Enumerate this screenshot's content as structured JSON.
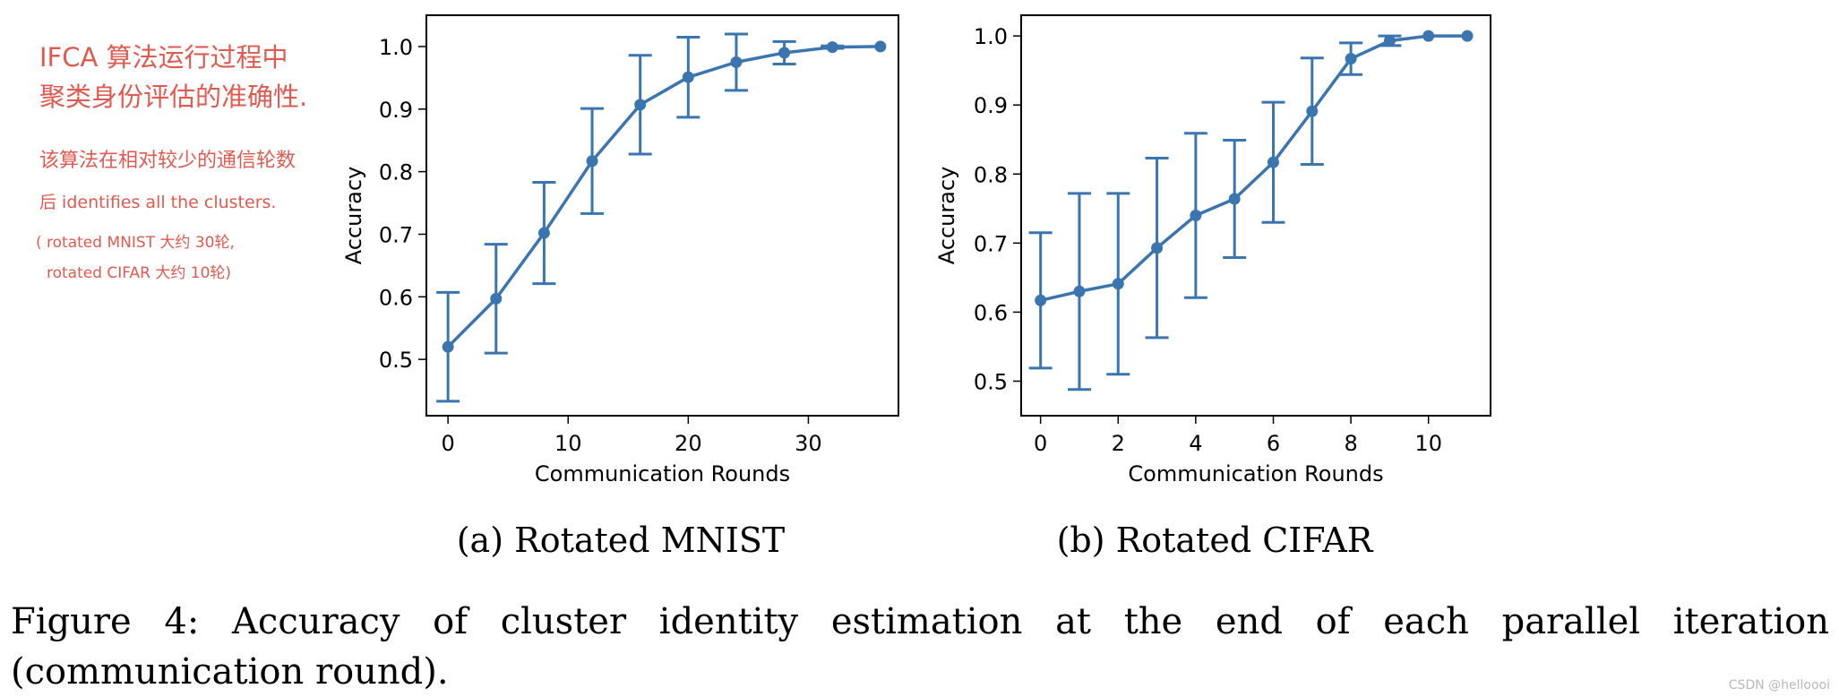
{
  "annotation": {
    "lines": [
      "IFCA 算法运行过程中",
      "聚类身份评估的准确性.",
      "该算法在相对较少的通信轮数",
      "后 identifies all the clusters.",
      "( rotated MNIST 大约 30轮,",
      "rotated CIFAR 大约 10轮)"
    ]
  },
  "chart_data": [
    {
      "type": "line",
      "subcaption": "(a) Rotated MNIST",
      "xlabel": "Communication Rounds",
      "ylabel": "Accuracy",
      "xlim": [
        -1.8,
        37.5
      ],
      "ylim": [
        0.41,
        1.05
      ],
      "xticks": [
        0,
        10,
        20,
        30
      ],
      "yticks": [
        0.5,
        0.6,
        0.7,
        0.8,
        0.9,
        1.0
      ],
      "series": [
        {
          "name": "accuracy",
          "color": "#3a75b0",
          "x": [
            0,
            4,
            8,
            12,
            16,
            20,
            24,
            28,
            32,
            36
          ],
          "y": [
            0.52,
            0.597,
            0.702,
            0.817,
            0.907,
            0.951,
            0.975,
            0.99,
            0.999,
            1.0
          ],
          "yerr": [
            0.087,
            0.087,
            0.081,
            0.084,
            0.079,
            0.064,
            0.045,
            0.018,
            0.002,
            0.0
          ]
        }
      ]
    },
    {
      "type": "line",
      "subcaption": "(b) Rotated CIFAR",
      "xlabel": "Communication Rounds",
      "ylabel": "Accuracy",
      "xlim": [
        -0.5,
        11.6
      ],
      "ylim": [
        0.45,
        1.03
      ],
      "xticks": [
        0,
        2,
        4,
        6,
        8,
        10
      ],
      "yticks": [
        0.5,
        0.6,
        0.7,
        0.8,
        0.9,
        1.0
      ],
      "series": [
        {
          "name": "accuracy",
          "color": "#3a75b0",
          "x": [
            0,
            1,
            2,
            3,
            4,
            5,
            6,
            7,
            8,
            9,
            10,
            11
          ],
          "y": [
            0.617,
            0.63,
            0.641,
            0.693,
            0.74,
            0.764,
            0.817,
            0.891,
            0.967,
            0.993,
            1.0,
            1.0
          ],
          "yerr": [
            0.098,
            0.142,
            0.131,
            0.13,
            0.119,
            0.085,
            0.087,
            0.077,
            0.023,
            0.007,
            0.0,
            0.0
          ]
        }
      ]
    }
  ],
  "caption": "Figure 4:  Accuracy of cluster identity estimation at the end of each parallel iteration (communication round).",
  "watermark": "CSDN @helloooi"
}
